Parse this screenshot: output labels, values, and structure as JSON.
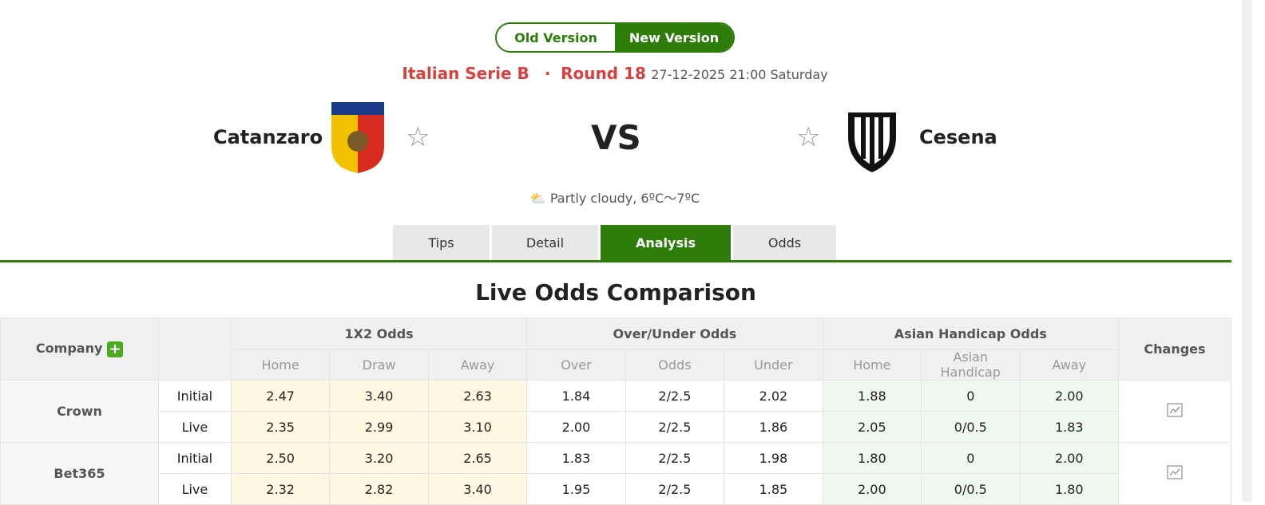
{
  "version_toggle": {
    "old": "Old Version",
    "new": "New Version"
  },
  "match": {
    "league": "Italian Serie B",
    "separator": "·",
    "round": "Round 18",
    "datetime": "27-12-2025 21:00 Saturday",
    "home": "Catanzaro",
    "away": "Cesena",
    "vs": "VS",
    "weather": "Partly cloudy, 6ºC～7ºC"
  },
  "tabs": [
    {
      "label": "Tips"
    },
    {
      "label": "Detail"
    },
    {
      "label": "Analysis",
      "active": true
    },
    {
      "label": "Odds"
    }
  ],
  "section_title": "Live Odds Comparison",
  "table": {
    "headers": {
      "company": "Company",
      "g1": "1X2 Odds",
      "g2": "Over/Under Odds",
      "g3": "Asian Handicap Odds",
      "changes": "Changes"
    },
    "subheaders": [
      "Home",
      "Draw",
      "Away",
      "Over",
      "Odds",
      "Under",
      "Home",
      "Asian Handicap",
      "Away"
    ],
    "rows": [
      {
        "company": "Crown",
        "initial": {
          "label": "Initial",
          "v": [
            "2.47",
            "3.40",
            "2.63",
            "1.84",
            "2/2.5",
            "2.02",
            "1.88",
            "0",
            "2.00"
          ]
        },
        "live": {
          "label": "Live",
          "v": [
            "2.35",
            "2.99",
            "3.10",
            "2.00",
            "2/2.5",
            "1.86",
            "2.05",
            "0/0.5",
            "1.83"
          ]
        }
      },
      {
        "company": "Bet365",
        "initial": {
          "label": "Initial",
          "v": [
            "2.50",
            "3.20",
            "2.65",
            "1.83",
            "2/2.5",
            "1.98",
            "1.80",
            "0",
            "2.00"
          ]
        },
        "live": {
          "label": "Live",
          "v": [
            "2.32",
            "2.82",
            "3.40",
            "1.95",
            "2/2.5",
            "1.85",
            "2.00",
            "0/0.5",
            "1.80"
          ]
        }
      }
    ]
  },
  "colors": {
    "accent": "#2e7d0a",
    "league": "#d9403e"
  }
}
